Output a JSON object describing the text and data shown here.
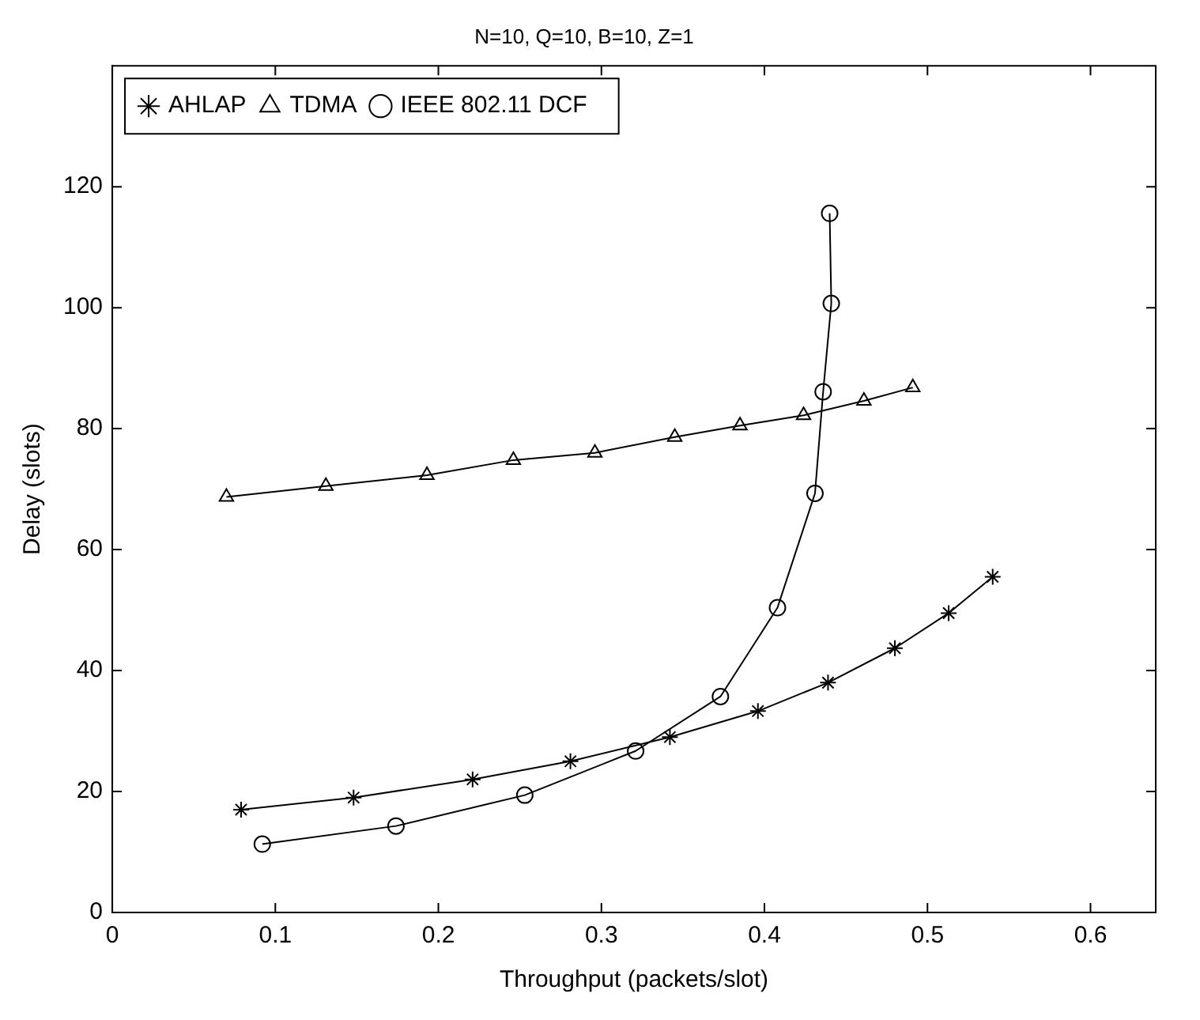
{
  "chart_data": {
    "type": "line",
    "title": "N=10, Q=10, B=10, Z=1",
    "xlabel": "Throughput (packets/slot)",
    "ylabel": "Delay (slots)",
    "xlim": [
      0,
      0.64
    ],
    "xticks": [
      0,
      0.1,
      0.2,
      0.3,
      0.4,
      0.5,
      0.6
    ],
    "ylim": [
      0,
      140
    ],
    "yticks": [
      0,
      20,
      40,
      60,
      80,
      100,
      120
    ],
    "grid": false,
    "legend": "top left",
    "line_style": "solid",
    "series": [
      {
        "name": "AHLAP",
        "color": "#000000",
        "marker": "cross",
        "x": [
          0.079,
          0.148,
          0.221,
          0.281,
          0.342,
          0.396,
          0.439,
          0.48,
          0.513,
          0.54
        ],
        "values": [
          17,
          19,
          22,
          25,
          29,
          33.3,
          38,
          43.7,
          49.5,
          55.5
        ]
      },
      {
        "name": "TDMA",
        "color": "#000000",
        "marker": "triangle",
        "x": [
          0.07,
          0.131,
          0.193,
          0.246,
          0.296,
          0.345,
          0.385,
          0.424,
          0.461,
          0.491
        ],
        "values": [
          68.7,
          70.5,
          72.3,
          74.8,
          76,
          78.6,
          80.5,
          82.2,
          84.6,
          86.8
        ]
      },
      {
        "name": "IEEE 802.11 DCF",
        "color": "#000000",
        "marker": "circle",
        "x": [
          0.092,
          0.174,
          0.253,
          0.321,
          0.373,
          0.408,
          0.431,
          0.436,
          0.441,
          0.44
        ],
        "values": [
          11.3,
          14.3,
          19.4,
          26.7,
          35.7,
          50.4,
          69.3,
          86.1,
          100.7,
          115.6
        ]
      }
    ]
  }
}
